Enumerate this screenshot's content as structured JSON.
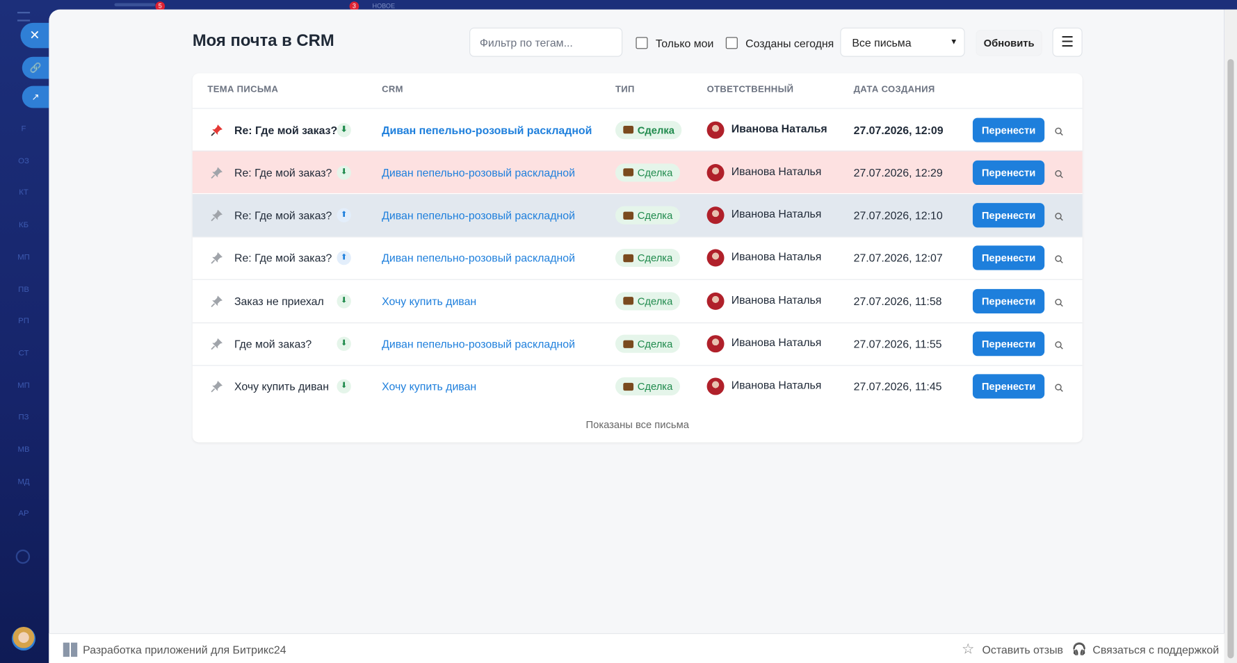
{
  "sidebar": {
    "badges": [
      "5",
      "3"
    ],
    "new_label": "НОВОЕ",
    "items": [
      "F",
      "ОЗ",
      "КТ",
      "КБ",
      "МП",
      "ПВ",
      "РП",
      "СТ",
      "МП",
      "ПЗ",
      "МВ",
      "МД",
      "АР"
    ]
  },
  "header": {
    "title": "Моя почта в CRM",
    "filter_placeholder": "Фильтр по тегам...",
    "only_mine": "Только мои",
    "created_today": "Созданы сегодня",
    "select_value": "Все письма",
    "refresh": "Обновить"
  },
  "table": {
    "columns": [
      "ТЕМА ПИСЬМА",
      "CRM",
      "ТИП",
      "ОТВЕТСТВЕННЫЙ",
      "ДАТА СОЗДАНИЯ"
    ],
    "rows": [
      {
        "subject": "Re: Где мой заказ?",
        "direction": "⬇",
        "crm": "Диван пепельно-розовый раскладной",
        "type": "Сделка",
        "responsible": "Иванова Наталья",
        "date": "27.07.2026, 12:09",
        "action": "Перенести",
        "pinned": true,
        "bold": true
      },
      {
        "subject": "Re: Где мой заказ?",
        "direction": "⬇",
        "crm": "Диван пепельно-розовый раскладной",
        "type": "Сделка",
        "responsible": "Иванова Наталья",
        "date": "27.07.2026, 12:29",
        "action": "Перенести",
        "background": "#fde1e1"
      },
      {
        "subject": "Re: Где мой заказ?",
        "direction": "⬆",
        "crm": "Диван пепельно-розовый раскладной",
        "type": "Сделка",
        "responsible": "Иванова Наталья",
        "date": "27.07.2026, 12:10",
        "action": "Перенести",
        "background": "#e2e8ef"
      },
      {
        "subject": "Re: Где мой заказ?",
        "direction": "⬆",
        "crm": "Диван пепельно-розовый раскладной",
        "type": "Сделка",
        "responsible": "Иванова Наталья",
        "date": "27.07.2026, 12:07",
        "action": "Перенести"
      },
      {
        "subject": "Заказ не приехал",
        "direction": "⬇",
        "crm": "Хочу купить диван",
        "type": "Сделка",
        "responsible": "Иванова Наталья",
        "date": "27.07.2026, 11:58",
        "action": "Перенести"
      },
      {
        "subject": "Где мой заказ?",
        "direction": "⬇",
        "crm": "Диван пепельно-розовый раскладной",
        "type": "Сделка",
        "responsible": "Иванова Наталья",
        "date": "27.07.2026, 11:55",
        "action": "Перенести"
      },
      {
        "subject": "Хочу купить диван",
        "direction": "⬇",
        "crm": "Хочу купить диван",
        "type": "Сделка",
        "responsible": "Иванова Наталья",
        "date": "27.07.2026, 11:45",
        "action": "Перенести"
      }
    ],
    "footer": "Показаны все письма"
  },
  "footer": {
    "app": "Разработка приложений для Битрикс24",
    "feedback": "Оставить отзыв",
    "support": "Связаться с поддержкой"
  }
}
